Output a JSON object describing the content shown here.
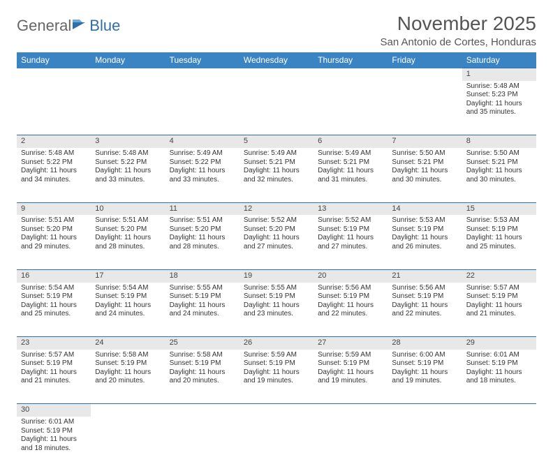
{
  "logo": {
    "text1": "General",
    "text2": "Blue"
  },
  "title": "November 2025",
  "location": "San Antonio de Cortes, Honduras",
  "colors": {
    "header_bg": "#3b84c4",
    "border": "#2f6fa8",
    "daynum_bg": "#e8e8e8",
    "text": "#333333",
    "title_text": "#555555"
  },
  "dayHeaders": [
    "Sunday",
    "Monday",
    "Tuesday",
    "Wednesday",
    "Thursday",
    "Friday",
    "Saturday"
  ],
  "weeks": [
    [
      null,
      null,
      null,
      null,
      null,
      null,
      {
        "n": "1",
        "sr": "5:48 AM",
        "ss": "5:23 PM",
        "dl": "11 hours and 35 minutes."
      }
    ],
    [
      {
        "n": "2",
        "sr": "5:48 AM",
        "ss": "5:22 PM",
        "dl": "11 hours and 34 minutes."
      },
      {
        "n": "3",
        "sr": "5:48 AM",
        "ss": "5:22 PM",
        "dl": "11 hours and 33 minutes."
      },
      {
        "n": "4",
        "sr": "5:49 AM",
        "ss": "5:22 PM",
        "dl": "11 hours and 33 minutes."
      },
      {
        "n": "5",
        "sr": "5:49 AM",
        "ss": "5:21 PM",
        "dl": "11 hours and 32 minutes."
      },
      {
        "n": "6",
        "sr": "5:49 AM",
        "ss": "5:21 PM",
        "dl": "11 hours and 31 minutes."
      },
      {
        "n": "7",
        "sr": "5:50 AM",
        "ss": "5:21 PM",
        "dl": "11 hours and 30 minutes."
      },
      {
        "n": "8",
        "sr": "5:50 AM",
        "ss": "5:21 PM",
        "dl": "11 hours and 30 minutes."
      }
    ],
    [
      {
        "n": "9",
        "sr": "5:51 AM",
        "ss": "5:20 PM",
        "dl": "11 hours and 29 minutes."
      },
      {
        "n": "10",
        "sr": "5:51 AM",
        "ss": "5:20 PM",
        "dl": "11 hours and 28 minutes."
      },
      {
        "n": "11",
        "sr": "5:51 AM",
        "ss": "5:20 PM",
        "dl": "11 hours and 28 minutes."
      },
      {
        "n": "12",
        "sr": "5:52 AM",
        "ss": "5:20 PM",
        "dl": "11 hours and 27 minutes."
      },
      {
        "n": "13",
        "sr": "5:52 AM",
        "ss": "5:19 PM",
        "dl": "11 hours and 27 minutes."
      },
      {
        "n": "14",
        "sr": "5:53 AM",
        "ss": "5:19 PM",
        "dl": "11 hours and 26 minutes."
      },
      {
        "n": "15",
        "sr": "5:53 AM",
        "ss": "5:19 PM",
        "dl": "11 hours and 25 minutes."
      }
    ],
    [
      {
        "n": "16",
        "sr": "5:54 AM",
        "ss": "5:19 PM",
        "dl": "11 hours and 25 minutes."
      },
      {
        "n": "17",
        "sr": "5:54 AM",
        "ss": "5:19 PM",
        "dl": "11 hours and 24 minutes."
      },
      {
        "n": "18",
        "sr": "5:55 AM",
        "ss": "5:19 PM",
        "dl": "11 hours and 24 minutes."
      },
      {
        "n": "19",
        "sr": "5:55 AM",
        "ss": "5:19 PM",
        "dl": "11 hours and 23 minutes."
      },
      {
        "n": "20",
        "sr": "5:56 AM",
        "ss": "5:19 PM",
        "dl": "11 hours and 22 minutes."
      },
      {
        "n": "21",
        "sr": "5:56 AM",
        "ss": "5:19 PM",
        "dl": "11 hours and 22 minutes."
      },
      {
        "n": "22",
        "sr": "5:57 AM",
        "ss": "5:19 PM",
        "dl": "11 hours and 21 minutes."
      }
    ],
    [
      {
        "n": "23",
        "sr": "5:57 AM",
        "ss": "5:19 PM",
        "dl": "11 hours and 21 minutes."
      },
      {
        "n": "24",
        "sr": "5:58 AM",
        "ss": "5:19 PM",
        "dl": "11 hours and 20 minutes."
      },
      {
        "n": "25",
        "sr": "5:58 AM",
        "ss": "5:19 PM",
        "dl": "11 hours and 20 minutes."
      },
      {
        "n": "26",
        "sr": "5:59 AM",
        "ss": "5:19 PM",
        "dl": "11 hours and 19 minutes."
      },
      {
        "n": "27",
        "sr": "5:59 AM",
        "ss": "5:19 PM",
        "dl": "11 hours and 19 minutes."
      },
      {
        "n": "28",
        "sr": "6:00 AM",
        "ss": "5:19 PM",
        "dl": "11 hours and 19 minutes."
      },
      {
        "n": "29",
        "sr": "6:01 AM",
        "ss": "5:19 PM",
        "dl": "11 hours and 18 minutes."
      }
    ],
    [
      {
        "n": "30",
        "sr": "6:01 AM",
        "ss": "5:19 PM",
        "dl": "11 hours and 18 minutes."
      },
      null,
      null,
      null,
      null,
      null,
      null
    ]
  ],
  "labels": {
    "sunrise": "Sunrise:",
    "sunset": "Sunset:",
    "daylight": "Daylight:"
  }
}
